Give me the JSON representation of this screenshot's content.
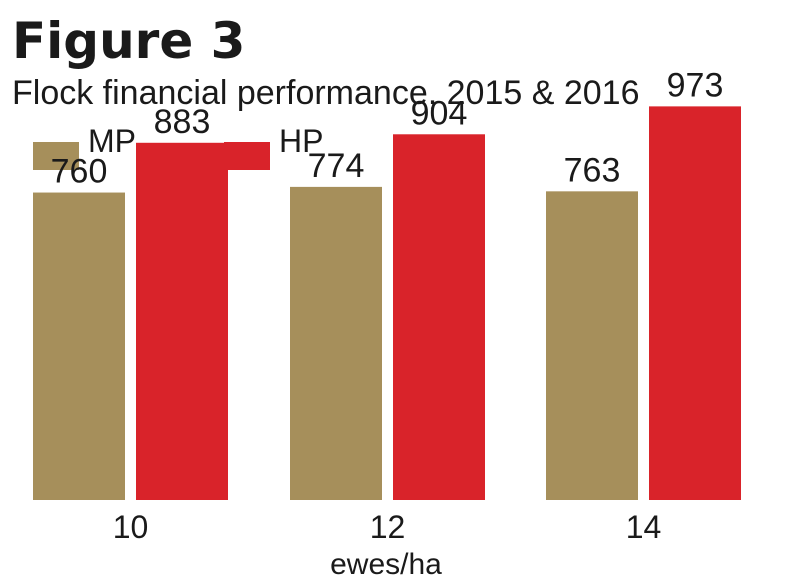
{
  "figure_label": "Figure 3",
  "chart_data": {
    "type": "bar",
    "title": "Flock financial performance, 2015 & 2016",
    "categories": [
      "10",
      "12",
      "14"
    ],
    "xlabel": "ewes/ha",
    "ylabel": "",
    "series": [
      {
        "name": "MP",
        "color": "#a68f5b",
        "values": [
          760,
          774,
          763
        ]
      },
      {
        "name": "HP",
        "color": "#d9232a",
        "values": [
          883,
          904,
          973
        ]
      }
    ],
    "ylim": [
      0,
      1100
    ],
    "grid": false,
    "legend": "top-left"
  }
}
